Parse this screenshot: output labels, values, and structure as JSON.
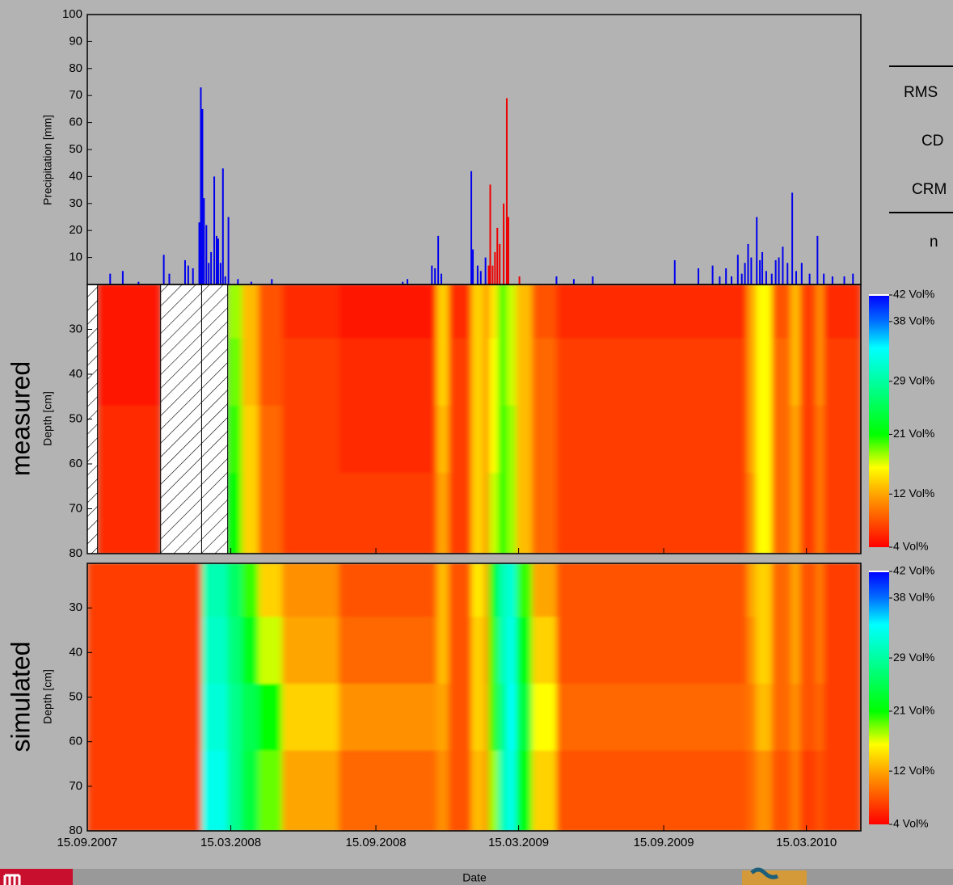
{
  "chart_data": [
    {
      "type": "bar",
      "ylabel": "Precipitation [mm]",
      "xlim": [
        "15.09.2007",
        "23.05.2010"
      ],
      "ylim": [
        0,
        100
      ],
      "yticks": [
        10,
        20,
        30,
        40,
        50,
        60,
        70,
        80,
        90,
        100
      ],
      "series": [
        {
          "color": "#0000ee",
          "x": [
            "14.10.2007",
            "30.10.2007",
            "19.11.2007",
            "21.12.2007",
            "28.12.2007",
            "17.01.2008",
            "21.01.2008",
            "27.01.2008",
            "04.02.2008",
            "06.02.2008",
            "08.02.2008",
            "10.02.2008",
            "13.02.2008",
            "16.02.2008",
            "19.02.2008",
            "23.02.2008",
            "26.02.2008",
            "28.02.2008",
            "02.03.2008",
            "05.03.2008",
            "08.03.2008",
            "12.03.2008",
            "24.03.2008",
            "10.04.2008",
            "06.05.2008",
            "19.10.2008",
            "25.10.2008",
            "25.11.2008",
            "29.11.2008",
            "03.12.2008",
            "07.12.2008",
            "14.01.2009",
            "16.01.2009",
            "22.01.2009",
            "26.01.2009",
            "01.02.2009",
            "02.05.2009",
            "24.05.2009",
            "17.06.2009",
            "29.09.2009",
            "29.10.2009",
            "16.11.2009",
            "25.11.2009",
            "03.12.2009",
            "10.12.2009",
            "18.12.2009",
            "23.12.2009",
            "27.12.2009",
            "31.12.2009",
            "04.01.2010",
            "11.01.2010",
            "15.01.2010",
            "18.01.2010",
            "23.01.2010",
            "30.01.2010",
            "04.02.2010",
            "08.02.2010",
            "13.02.2010",
            "19.02.2010",
            "25.02.2010",
            "02.03.2010",
            "09.03.2010",
            "19.03.2010",
            "29.03.2010",
            "06.04.2010",
            "17.04.2010",
            "02.05.2010",
            "13.05.2010"
          ],
          "values": [
            4,
            5,
            1,
            11,
            4,
            9,
            7,
            6,
            23,
            73,
            65,
            32,
            22,
            8,
            12,
            40,
            18,
            17,
            8,
            43,
            3,
            25,
            2,
            1,
            2,
            1,
            2,
            7,
            6,
            18,
            4,
            42,
            13,
            7,
            5,
            10,
            3,
            2,
            3,
            9,
            6,
            7,
            3,
            6,
            3,
            11,
            4,
            8,
            15,
            10,
            25,
            9,
            12,
            5,
            4,
            9,
            10,
            14,
            8,
            34,
            5,
            8,
            4,
            18,
            4,
            3,
            3,
            4
          ]
        },
        {
          "color": "#ee0000",
          "x": [
            "05.02.2009",
            "07.02.2009",
            "10.02.2009",
            "13.02.2009",
            "16.02.2009",
            "19.02.2009",
            "24.02.2009",
            "28.02.2009",
            "02.03.2009",
            "16.03.2009"
          ],
          "values": [
            7,
            37,
            7,
            12,
            21,
            15,
            30,
            69,
            25,
            3
          ]
        }
      ]
    },
    {
      "type": "heatmap",
      "title": "measured",
      "ylabel": "Depth [cm]",
      "xlim": [
        "15.09.2007",
        "23.05.2010"
      ],
      "ylim": [
        80,
        20
      ],
      "yticks": [
        30,
        40,
        50,
        60,
        70,
        80
      ],
      "depth_bins": [
        20,
        32,
        47,
        62,
        80
      ],
      "x": [
        "15.09.2007",
        "28.09.2007",
        "17.12.2007",
        "07.02.2008",
        "11.03.2008",
        "29.03.2008",
        "19.04.2008",
        "19.05.2008",
        "30.07.2008",
        "01.12.2008",
        "16.12.2008",
        "14.01.2009",
        "31.01.2009",
        "05.02.2009",
        "17.02.2009",
        "28.02.2009",
        "12.03.2009",
        "01.04.2009",
        "02.05.2009",
        "30.12.2009",
        "10.01.2010",
        "30.01.2010",
        "23.02.2010",
        "07.03.2010",
        "27.03.2010",
        "06.04.2010"
      ],
      "values": [
        [
          null,
          5,
          null,
          null,
          18,
          13,
          8,
          6,
          5,
          14,
          6,
          14,
          9,
          15,
          20,
          17,
          13,
          8,
          6,
          12,
          16,
          8,
          13,
          7,
          11,
          6
        ],
        [
          null,
          5,
          null,
          null,
          19,
          13,
          8,
          7,
          6,
          14,
          7,
          14,
          9,
          16,
          20,
          17,
          13,
          9,
          7,
          12,
          16,
          9,
          13,
          7,
          11,
          7
        ],
        [
          null,
          6,
          null,
          null,
          20,
          14,
          9,
          7,
          6,
          13,
          7,
          14,
          9,
          16,
          21,
          18,
          13,
          9,
          7,
          12,
          16,
          9,
          12,
          7,
          10,
          7
        ],
        [
          null,
          6,
          null,
          null,
          21,
          14,
          9,
          7,
          7,
          12,
          7,
          14,
          9,
          17,
          21,
          18,
          13,
          9,
          7,
          11,
          16,
          9,
          12,
          7,
          10,
          7
        ]
      ],
      "clim": [
        4,
        42
      ],
      "colorscale": [
        [
          4,
          "#ff0000"
        ],
        [
          12,
          "#ffa500"
        ],
        [
          16,
          "#ffff00"
        ],
        [
          21,
          "#00ff00"
        ],
        [
          29,
          "#00ffa0"
        ],
        [
          34,
          "#00ffff"
        ],
        [
          38,
          "#0070ff"
        ],
        [
          42,
          "#0000ff"
        ]
      ],
      "cticks": [
        {
          "value": 42,
          "label": "42 Vol%"
        },
        {
          "value": 38,
          "label": "38 Vol%"
        },
        {
          "value": 29,
          "label": "29 Vol%"
        },
        {
          "value": 21,
          "label": "21 Vol%"
        },
        {
          "value": 12,
          "label": "12 Vol%"
        },
        {
          "value": 4,
          "label": "4 Vol%"
        }
      ]
    },
    {
      "type": "heatmap",
      "title": "simulated",
      "ylabel": "Depth [cm]",
      "xlabel": "Date",
      "xlim": [
        "15.09.2007",
        "23.05.2010"
      ],
      "ylim": [
        80,
        20
      ],
      "yticks": [
        30,
        40,
        50,
        60,
        70,
        80
      ],
      "xticks": [
        "15.09.2007",
        "15.03.2008",
        "15.09.2008",
        "15.03.2009",
        "15.09.2009",
        "15.03.2010"
      ],
      "depth_bins": [
        20,
        32,
        47,
        62,
        80
      ],
      "x": [
        "15.09.2007",
        "28.09.2007",
        "17.12.2007",
        "07.02.2008",
        "11.03.2008",
        "29.03.2008",
        "19.04.2008",
        "19.05.2008",
        "30.07.2008",
        "01.12.2008",
        "16.12.2008",
        "14.01.2009",
        "31.01.2009",
        "05.02.2009",
        "17.02.2009",
        "28.02.2009",
        "12.03.2009",
        "01.04.2009",
        "02.05.2009",
        "30.12.2009",
        "10.01.2010",
        "30.01.2010",
        "23.02.2010",
        "07.03.2010",
        "27.03.2010",
        "06.04.2010"
      ],
      "values": [
        [
          7,
          7,
          7,
          30,
          26,
          20,
          14,
          11,
          8,
          13,
          8,
          15,
          10,
          22,
          30,
          32,
          20,
          12,
          8,
          12,
          14,
          9,
          12,
          8,
          10,
          7
        ],
        [
          7,
          7,
          7,
          31,
          27,
          22,
          17,
          12,
          9,
          13,
          8,
          14,
          10,
          20,
          30,
          33,
          22,
          14,
          8,
          11,
          14,
          9,
          12,
          8,
          10,
          7
        ],
        [
          7,
          7,
          7,
          32,
          28,
          25,
          21,
          14,
          11,
          12,
          8,
          14,
          11,
          20,
          28,
          34,
          24,
          16,
          9,
          10,
          13,
          9,
          11,
          8,
          9,
          7
        ],
        [
          7,
          7,
          7,
          33,
          28,
          24,
          19,
          12,
          9,
          11,
          8,
          13,
          10,
          18,
          30,
          33,
          22,
          14,
          8,
          9,
          11,
          8,
          10,
          7,
          8,
          7
        ]
      ],
      "clim": [
        4,
        42
      ],
      "colorscale": [
        [
          4,
          "#ff0000"
        ],
        [
          12,
          "#ffa500"
        ],
        [
          16,
          "#ffff00"
        ],
        [
          21,
          "#00ff00"
        ],
        [
          29,
          "#00ffa0"
        ],
        [
          34,
          "#00ffff"
        ],
        [
          38,
          "#0070ff"
        ],
        [
          42,
          "#0000ff"
        ]
      ],
      "cticks": [
        {
          "value": 42,
          "label": "42 Vol%"
        },
        {
          "value": 38,
          "label": "38 Vol%"
        },
        {
          "value": 29,
          "label": "29 Vol%"
        },
        {
          "value": 21,
          "label": "21 Vol%"
        },
        {
          "value": 12,
          "label": "12 Vol%"
        },
        {
          "value": 4,
          "label": "4 Vol%"
        }
      ]
    }
  ],
  "side_table": {
    "rows": [
      "RMS",
      "CD",
      "CRM",
      "n"
    ]
  }
}
